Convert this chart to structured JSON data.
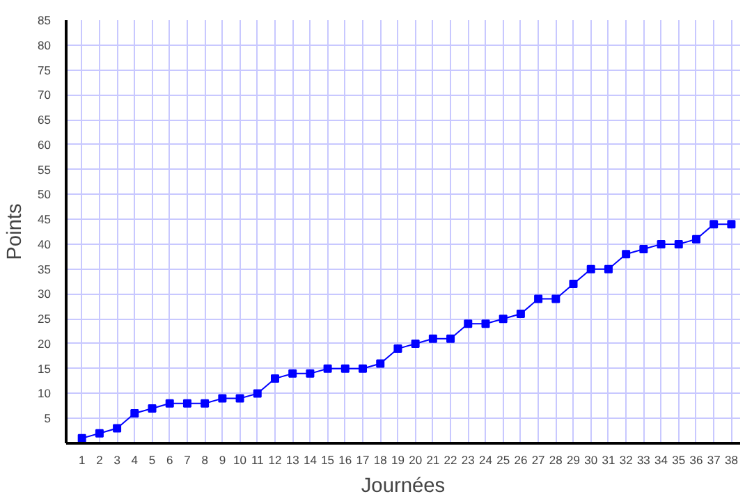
{
  "chart_data": {
    "type": "line",
    "xlabel": "Journées",
    "ylabel": "Points",
    "x": [
      1,
      2,
      3,
      4,
      5,
      6,
      7,
      8,
      9,
      10,
      11,
      12,
      13,
      14,
      15,
      16,
      17,
      18,
      19,
      20,
      21,
      22,
      23,
      24,
      25,
      26,
      27,
      28,
      29,
      30,
      31,
      32,
      33,
      34,
      35,
      36,
      37,
      38
    ],
    "series": [
      {
        "color": "#0000ff",
        "values": [
          1,
          2,
          3,
          6,
          7,
          8,
          8,
          8,
          9,
          9,
          10,
          13,
          14,
          14,
          15,
          15,
          15,
          16,
          19,
          20,
          21,
          21,
          24,
          24,
          25,
          26,
          29,
          29,
          32,
          35,
          35,
          38,
          39,
          40,
          40,
          41,
          44,
          44
        ]
      }
    ],
    "xlim": [
      0.1,
      38.5
    ],
    "xticks": [
      1,
      2,
      3,
      4,
      5,
      6,
      7,
      8,
      9,
      10,
      11,
      12,
      13,
      14,
      15,
      16,
      17,
      18,
      19,
      20,
      21,
      22,
      23,
      24,
      25,
      26,
      27,
      28,
      29,
      30,
      31,
      32,
      33,
      34,
      35,
      36,
      37,
      38
    ],
    "ylim": [
      0,
      85
    ],
    "yticks": [
      5,
      10,
      15,
      20,
      25,
      30,
      35,
      40,
      45,
      50,
      55,
      60,
      65,
      70,
      75,
      80,
      85
    ],
    "grid": true,
    "marker": "square",
    "line_style": "solid"
  }
}
